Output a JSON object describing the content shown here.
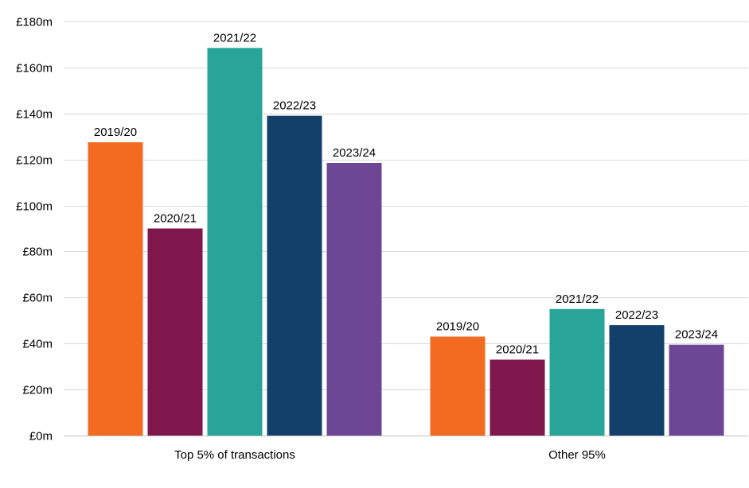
{
  "chart_data": {
    "type": "bar",
    "categories": [
      "Top 5% of transactions",
      "Other 95%"
    ],
    "series": [
      {
        "name": "2019/20",
        "values": [
          127.5,
          43
        ],
        "color": "#f26b21"
      },
      {
        "name": "2020/21",
        "values": [
          90,
          33
        ],
        "color": "#7f174d"
      },
      {
        "name": "2021/22",
        "values": [
          168.5,
          55
        ],
        "color": "#28a499"
      },
      {
        "name": "2022/23",
        "values": [
          139,
          48
        ],
        "color": "#12406a"
      },
      {
        "name": "2023/24",
        "values": [
          118.5,
          39.5
        ],
        "color": "#6d4796"
      }
    ],
    "ylim": [
      0,
      180
    ],
    "yticks": [
      0,
      20,
      40,
      60,
      80,
      100,
      120,
      140,
      160,
      180
    ],
    "ytick_labels": [
      "£0m",
      "£20m",
      "£40m",
      "£60m",
      "£80m",
      "£100m",
      "£120m",
      "£140m",
      "£160m",
      "£180m"
    ],
    "grid": true,
    "legend": "none",
    "data_labels": "series-name-above-bar"
  }
}
